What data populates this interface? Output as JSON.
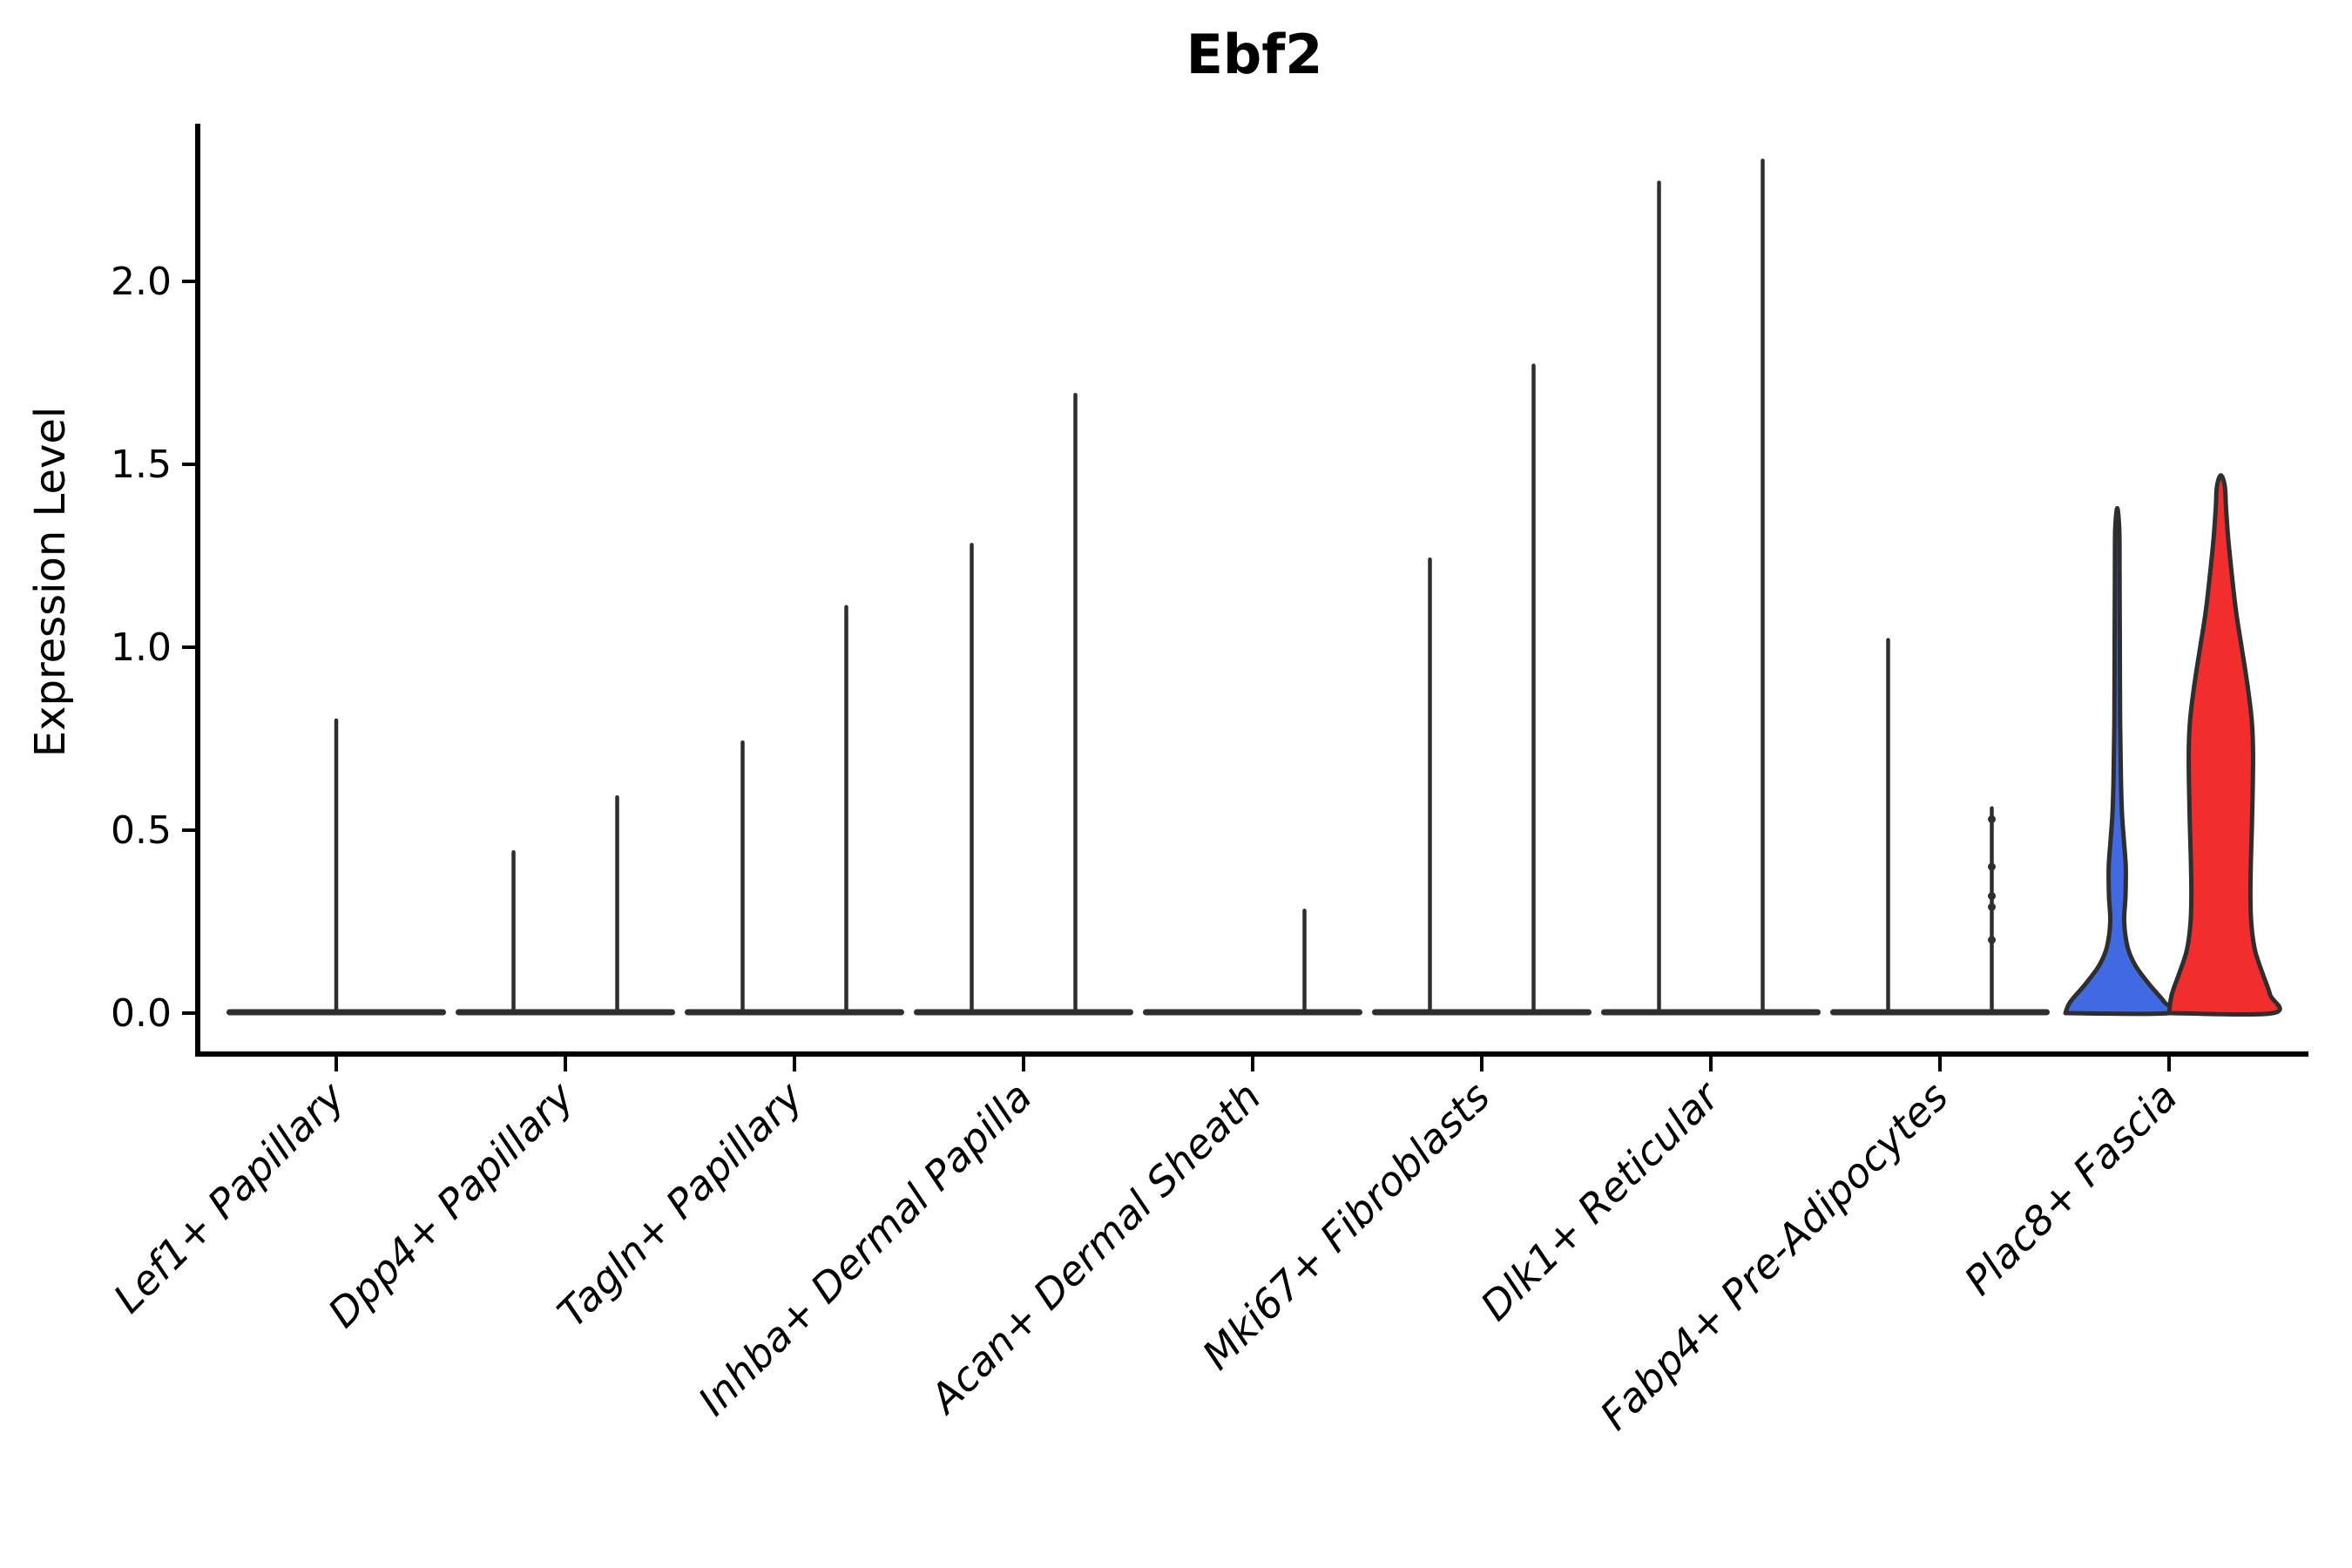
{
  "title": "Ebf2",
  "y_axis": {
    "label": "Expression Level",
    "tick_labels": [
      "0.0",
      "0.5",
      "1.0",
      "1.5",
      "2.0"
    ]
  },
  "colors": {
    "violin_blue": "#4169E1",
    "violin_red": "#F22D2D",
    "violin_edge": "#2e2e2e",
    "axis_line": "#000000",
    "text": "#000000"
  },
  "chart_data": {
    "type": "violin",
    "title": "Ebf2",
    "xlabel": "",
    "ylabel": "Expression Level",
    "ylim": [
      0,
      2.43
    ],
    "yticks": [
      0,
      0.5,
      1,
      1.5,
      2
    ],
    "grid": false,
    "legend": null,
    "categories": [
      "Lef1+ Papillary",
      "Dpp4+ Papillary",
      "Tagln+ Papillary",
      "Inhba+ Dermal Papilla",
      "Acan+ Dermal Sheath",
      "Mki67+ Fibroblasts",
      "Dlk1+ Reticular",
      "Fabp4+ Pre-Adipocytes",
      "Plac8+ Fascia"
    ],
    "violins": [
      {
        "category_index": 0,
        "category": "Lef1+ Papillary",
        "position": "center",
        "shape": "spike",
        "max": 0.8
      },
      {
        "category_index": 1,
        "category": "Dpp4+ Papillary",
        "position": "left",
        "shape": "spike",
        "max": 0.44
      },
      {
        "category_index": 1,
        "category": "Dpp4+ Papillary",
        "position": "right",
        "shape": "spike",
        "max": 0.59
      },
      {
        "category_index": 2,
        "category": "Tagln+ Papillary",
        "position": "left",
        "shape": "spike",
        "max": 0.74
      },
      {
        "category_index": 2,
        "category": "Tagln+ Papillary",
        "position": "right",
        "shape": "spike",
        "max": 1.11
      },
      {
        "category_index": 3,
        "category": "Inhba+ Dermal Papilla",
        "position": "left",
        "shape": "spike",
        "max": 1.28
      },
      {
        "category_index": 3,
        "category": "Inhba+ Dermal Papilla",
        "position": "right",
        "shape": "spike",
        "max": 1.69
      },
      {
        "category_index": 4,
        "category": "Acan+ Dermal Sheath",
        "position": "left",
        "shape": "flat",
        "max": 0
      },
      {
        "category_index": 4,
        "category": "Acan+ Dermal Sheath",
        "position": "right",
        "shape": "spike",
        "max": 0.28
      },
      {
        "category_index": 5,
        "category": "Mki67+ Fibroblasts",
        "position": "left",
        "shape": "spike",
        "max": 1.24
      },
      {
        "category_index": 5,
        "category": "Mki67+ Fibroblasts",
        "position": "right",
        "shape": "spike",
        "max": 1.77
      },
      {
        "category_index": 6,
        "category": "Dlk1+ Reticular",
        "position": "left",
        "shape": "spike",
        "max": 2.27
      },
      {
        "category_index": 6,
        "category": "Dlk1+ Reticular",
        "position": "right",
        "shape": "spike",
        "max": 2.33
      },
      {
        "category_index": 7,
        "category": "Fabp4+ Pre-Adipocytes",
        "position": "left",
        "shape": "spike",
        "max": 1.02
      },
      {
        "category_index": 7,
        "category": "Fabp4+ Pre-Adipocytes",
        "position": "right",
        "shape": "spike",
        "max": 0.56,
        "dots": [
          0.53,
          0.4,
          0.32,
          0.29,
          0.2
        ]
      },
      {
        "category_index": 8,
        "category": "Plac8+ Fascia",
        "position": "left",
        "shape": "density",
        "max": 1.38,
        "color": "#4169E1",
        "profile": [
          [
            0,
            1
          ],
          [
            0.03,
            0.91
          ],
          [
            0.08,
            0.61
          ],
          [
            0.13,
            0.35
          ],
          [
            0.18,
            0.2
          ],
          [
            0.25,
            0.135
          ],
          [
            0.32,
            0.16
          ],
          [
            0.4,
            0.165
          ],
          [
            0.47,
            0.13
          ],
          [
            0.55,
            0.09
          ],
          [
            0.65,
            0.07
          ],
          [
            0.8,
            0.055
          ],
          [
            1.0,
            0.05
          ],
          [
            1.2,
            0.045
          ],
          [
            1.32,
            0.04
          ],
          [
            1.38,
            0
          ]
        ]
      },
      {
        "category_index": 8,
        "category": "Plac8+ Fascia",
        "position": "right",
        "shape": "density",
        "max": 1.47,
        "color": "#F22D2D",
        "profile": [
          [
            0,
            1
          ],
          [
            0.05,
            0.95
          ],
          [
            0.11,
            0.8
          ],
          [
            0.17,
            0.66
          ],
          [
            0.24,
            0.59
          ],
          [
            0.32,
            0.57
          ],
          [
            0.42,
            0.58
          ],
          [
            0.52,
            0.6
          ],
          [
            0.62,
            0.615
          ],
          [
            0.72,
            0.62
          ],
          [
            0.8,
            0.595
          ],
          [
            0.9,
            0.51
          ],
          [
            1.0,
            0.4
          ],
          [
            1.1,
            0.29
          ],
          [
            1.2,
            0.21
          ],
          [
            1.3,
            0.14
          ],
          [
            1.38,
            0.1
          ],
          [
            1.44,
            0.075
          ],
          [
            1.47,
            0
          ]
        ]
      }
    ]
  }
}
